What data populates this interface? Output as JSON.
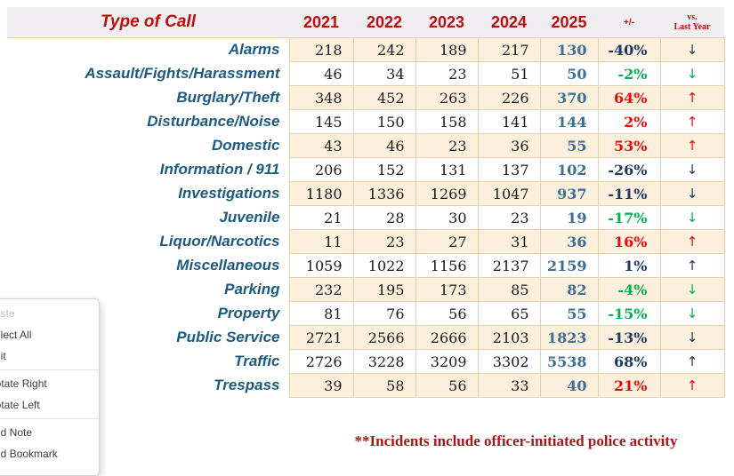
{
  "colors": {
    "header_red": "#BB0E0E",
    "label_blue": "#1C5A80",
    "current_year_blue": "#3C6E96",
    "change_navy": "#1F3864",
    "change_green": "#00B050",
    "change_red": "#E90A0A",
    "row_beige": "#FCF0DC",
    "header_grey": "#F0EEF0",
    "footer_red": "#A51717"
  },
  "table": {
    "header": {
      "label": "Type of Call",
      "years": [
        "2021",
        "2022",
        "2023",
        "2024",
        "2025"
      ],
      "change": "+/-",
      "vs_line1": "vs.",
      "vs_line2": "Last Year"
    },
    "rows": [
      {
        "label": "Alarms",
        "values": [
          218,
          242,
          189,
          217
        ],
        "current": 130,
        "change": "-40%",
        "change_color": "navy",
        "arrow": "↓"
      },
      {
        "label": "Assault/Fights/Harassment",
        "values": [
          46,
          34,
          23,
          51
        ],
        "current": 50,
        "change": "-2%",
        "change_color": "green",
        "arrow": "↓"
      },
      {
        "label": "Burglary/Theft",
        "values": [
          348,
          452,
          263,
          226
        ],
        "current": 370,
        "change": "64%",
        "change_color": "red",
        "arrow": "↑"
      },
      {
        "label": "Disturbance/Noise",
        "values": [
          145,
          150,
          158,
          141
        ],
        "current": 144,
        "change": "2%",
        "change_color": "red",
        "arrow": "↑"
      },
      {
        "label": "Domestic",
        "values": [
          43,
          46,
          23,
          36
        ],
        "current": 55,
        "change": "53%",
        "change_color": "red",
        "arrow": "↑"
      },
      {
        "label": "Information / 911",
        "values": [
          206,
          152,
          131,
          137
        ],
        "current": 102,
        "change": "-26%",
        "change_color": "navy",
        "arrow": "↓"
      },
      {
        "label": "Investigations",
        "values": [
          1180,
          1336,
          1269,
          1047
        ],
        "current": 937,
        "change": "-11%",
        "change_color": "navy",
        "arrow": "↓"
      },
      {
        "label": "Juvenile",
        "values": [
          21,
          28,
          30,
          23
        ],
        "current": 19,
        "change": "-17%",
        "change_color": "green",
        "arrow": "↓"
      },
      {
        "label": "Liquor/Narcotics",
        "values": [
          11,
          23,
          27,
          31
        ],
        "current": 36,
        "change": "16%",
        "change_color": "red",
        "arrow": "↑"
      },
      {
        "label": "Miscellaneous",
        "values": [
          1059,
          1022,
          1156,
          2137
        ],
        "current": 2159,
        "change": "1%",
        "change_color": "navy",
        "arrow": "↑"
      },
      {
        "label": "Parking",
        "values": [
          232,
          195,
          173,
          85
        ],
        "current": 82,
        "change": "-4%",
        "change_color": "green",
        "arrow": "↓"
      },
      {
        "label": "Property",
        "values": [
          81,
          76,
          56,
          65
        ],
        "current": 55,
        "change": "-15%",
        "change_color": "green",
        "arrow": "↓"
      },
      {
        "label": "Public Service",
        "values": [
          2721,
          2566,
          2666,
          2103
        ],
        "current": 1823,
        "change": "-13%",
        "change_color": "navy",
        "arrow": "↓"
      },
      {
        "label": "Traffic",
        "values": [
          2726,
          3228,
          3209,
          3302
        ],
        "current": 5538,
        "change": "68%",
        "change_color": "navy",
        "arrow": "↑"
      },
      {
        "label": "Trespass",
        "values": [
          39,
          58,
          56,
          33
        ],
        "current": 40,
        "change": "21%",
        "change_color": "red",
        "arrow": "↑"
      }
    ]
  },
  "footer": {
    "note": "**Incidents include officer-initiated police activity"
  },
  "context_menu": {
    "items": [
      {
        "type": "item",
        "label": "Paste",
        "disabled": true
      },
      {
        "type": "item",
        "label": "Select All"
      },
      {
        "type": "item",
        "label": "Edit"
      },
      {
        "type": "separator"
      },
      {
        "type": "item",
        "label": "Rotate Right"
      },
      {
        "type": "item",
        "label": "Rotate Left"
      },
      {
        "type": "separator"
      },
      {
        "type": "item",
        "label": "Add Note"
      },
      {
        "type": "item",
        "label": "Add Bookmark"
      }
    ]
  }
}
